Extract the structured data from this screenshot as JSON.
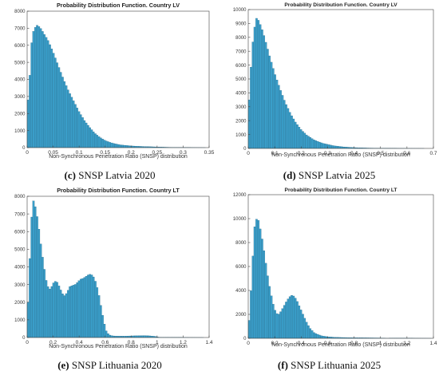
{
  "colors": {
    "bar_fill": "#3a9ec9",
    "bar_edge": "#1e5f7e",
    "axis": "#444444",
    "background": "#ffffff"
  },
  "chart_data": [
    {
      "id": "c",
      "type": "bar",
      "title": "Probability Distribution Function. Country LV",
      "xlabel": "Non-Synchronous Penetration Ratio (SNSP) distribution",
      "ylabel": "",
      "caption_letter": "(c)",
      "caption_text": "SNSP Latvia 2020",
      "xlim": [
        0,
        0.35
      ],
      "ylim": [
        0,
        8000
      ],
      "xticks": [
        0,
        0.05,
        0.1,
        0.15,
        0.2,
        0.25,
        0.3,
        0.35
      ],
      "xtick_labels": [
        "0",
        "0.05",
        "0.1",
        "0.15",
        "0.2",
        "0.25",
        "0.3",
        "0.35"
      ],
      "yticks": [
        0,
        1000,
        2000,
        3000,
        4000,
        5000,
        6000,
        7000,
        8000
      ],
      "ytick_labels": [
        "0",
        "1000",
        "2000",
        "3000",
        "4000",
        "5000",
        "6000",
        "7000",
        "8000"
      ],
      "grid": false,
      "bin_width": 0.0035,
      "points": [
        [
          0.003,
          2800
        ],
        [
          0.008,
          6000
        ],
        [
          0.012,
          6800
        ],
        [
          0.018,
          7200
        ],
        [
          0.025,
          7050
        ],
        [
          0.032,
          6700
        ],
        [
          0.04,
          6300
        ],
        [
          0.05,
          5600
        ],
        [
          0.06,
          4800
        ],
        [
          0.07,
          4000
        ],
        [
          0.08,
          3300
        ],
        [
          0.09,
          2700
        ],
        [
          0.1,
          2100
        ],
        [
          0.11,
          1600
        ],
        [
          0.12,
          1200
        ],
        [
          0.13,
          850
        ],
        [
          0.14,
          600
        ],
        [
          0.15,
          420
        ],
        [
          0.16,
          300
        ],
        [
          0.17,
          220
        ],
        [
          0.18,
          160
        ],
        [
          0.2,
          100
        ],
        [
          0.22,
          70
        ],
        [
          0.24,
          50
        ],
        [
          0.26,
          30
        ],
        [
          0.28,
          15
        ],
        [
          0.3,
          8
        ],
        [
          0.35,
          0
        ]
      ]
    },
    {
      "id": "d",
      "type": "bar",
      "title": "Probability Distribution Function. Country LV",
      "xlabel": "Non-Synchronous Penetration Ratio (SNSP) distribution",
      "ylabel": "",
      "caption_letter": "(d)",
      "caption_text": "SNSP Latvia 2025",
      "xlim": [
        0,
        0.7
      ],
      "ylim": [
        0,
        10000
      ],
      "xticks": [
        0,
        0.1,
        0.2,
        0.3,
        0.4,
        0.5,
        0.6,
        0.7
      ],
      "xtick_labels": [
        "0",
        "0.1",
        "0.2",
        "0.3",
        "0.4",
        "0.5",
        "0.6",
        "0.7"
      ],
      "yticks": [
        0,
        1000,
        2000,
        3000,
        4000,
        5000,
        6000,
        7000,
        8000,
        9000,
        10000
      ],
      "ytick_labels": [
        "0",
        "1000",
        "2000",
        "3000",
        "4000",
        "5000",
        "6000",
        "7000",
        "8000",
        "9000",
        "10000"
      ],
      "grid": false,
      "bin_width": 0.007,
      "points": [
        [
          0.005,
          3500
        ],
        [
          0.012,
          6500
        ],
        [
          0.02,
          8200
        ],
        [
          0.03,
          9400
        ],
        [
          0.04,
          9200
        ],
        [
          0.05,
          8700
        ],
        [
          0.06,
          8100
        ],
        [
          0.07,
          7400
        ],
        [
          0.08,
          6700
        ],
        [
          0.1,
          5400
        ],
        [
          0.12,
          4300
        ],
        [
          0.14,
          3300
        ],
        [
          0.16,
          2500
        ],
        [
          0.18,
          1850
        ],
        [
          0.2,
          1350
        ],
        [
          0.22,
          980
        ],
        [
          0.25,
          600
        ],
        [
          0.28,
          380
        ],
        [
          0.32,
          200
        ],
        [
          0.36,
          110
        ],
        [
          0.4,
          60
        ],
        [
          0.45,
          30
        ],
        [
          0.5,
          15
        ],
        [
          0.55,
          8
        ],
        [
          0.6,
          3
        ],
        [
          0.7,
          0
        ]
      ]
    },
    {
      "id": "e",
      "type": "bar",
      "title": "Probability Distribution Function. Country LT",
      "xlabel": "Non-Synchronous Penetration Ratio (SNSP) distribution",
      "ylabel": "",
      "caption_letter": "(e)",
      "caption_text": "SNSP Lithuania 2020",
      "xlim": [
        0,
        1.4
      ],
      "ylim": [
        0,
        8000
      ],
      "xticks": [
        0,
        0.2,
        0.4,
        0.6,
        0.8,
        1,
        1.2,
        1.4
      ],
      "xtick_labels": [
        "0",
        "0.2",
        "0.4",
        "0.6",
        "0.8",
        "1",
        "1.2",
        "1.4"
      ],
      "yticks": [
        0,
        1000,
        2000,
        3000,
        4000,
        5000,
        6000,
        7000,
        8000
      ],
      "ytick_labels": [
        "0",
        "1000",
        "2000",
        "3000",
        "4000",
        "5000",
        "6000",
        "7000",
        "8000"
      ],
      "grid": false,
      "bin_width": 0.014,
      "points": [
        [
          0.01,
          2000
        ],
        [
          0.03,
          6500
        ],
        [
          0.05,
          7800
        ],
        [
          0.07,
          7200
        ],
        [
          0.09,
          6200
        ],
        [
          0.11,
          5000
        ],
        [
          0.13,
          4000
        ],
        [
          0.15,
          3100
        ],
        [
          0.17,
          2700
        ],
        [
          0.19,
          2900
        ],
        [
          0.21,
          3200
        ],
        [
          0.23,
          3150
        ],
        [
          0.25,
          2850
        ],
        [
          0.27,
          2500
        ],
        [
          0.29,
          2350
        ],
        [
          0.31,
          2600
        ],
        [
          0.33,
          2900
        ],
        [
          0.35,
          2950
        ],
        [
          0.37,
          3000
        ],
        [
          0.39,
          3150
        ],
        [
          0.41,
          3300
        ],
        [
          0.43,
          3350
        ],
        [
          0.45,
          3450
        ],
        [
          0.47,
          3550
        ],
        [
          0.49,
          3600
        ],
        [
          0.51,
          3450
        ],
        [
          0.53,
          3100
        ],
        [
          0.55,
          2500
        ],
        [
          0.57,
          1700
        ],
        [
          0.59,
          900
        ],
        [
          0.61,
          350
        ],
        [
          0.63,
          150
        ],
        [
          0.66,
          90
        ],
        [
          0.7,
          80
        ],
        [
          0.75,
          80
        ],
        [
          0.8,
          90
        ],
        [
          0.85,
          100
        ],
        [
          0.9,
          110
        ],
        [
          0.95,
          90
        ],
        [
          0.99,
          60
        ],
        [
          1.02,
          10
        ],
        [
          1.4,
          0
        ]
      ]
    },
    {
      "id": "f",
      "type": "bar",
      "title": "Probability Distribution Function. Country LT",
      "xlabel": "Non-Synchronous Penetration Ratio (SNSP) distribution",
      "ylabel": "",
      "caption_letter": "(f)",
      "caption_text": "SNSP Lithuania 2025",
      "xlim": [
        0,
        1.4
      ],
      "ylim": [
        0,
        12000
      ],
      "xticks": [
        0,
        0.2,
        0.4,
        0.6,
        0.8,
        1,
        1.2,
        1.4
      ],
      "xtick_labels": [
        "0",
        "0.2",
        "0.4",
        "0.6",
        "0.8",
        "1",
        "1.2",
        "1.4"
      ],
      "yticks": [
        0,
        2000,
        4000,
        6000,
        8000,
        10000,
        12000
      ],
      "ytick_labels": [
        "0",
        "2000",
        "4000",
        "6000",
        "8000",
        "10000",
        "12000"
      ],
      "grid": false,
      "bin_width": 0.014,
      "points": [
        [
          0.01,
          1500
        ],
        [
          0.03,
          6000
        ],
        [
          0.05,
          9500
        ],
        [
          0.07,
          10200
        ],
        [
          0.09,
          9200
        ],
        [
          0.11,
          8000
        ],
        [
          0.13,
          6500
        ],
        [
          0.15,
          5000
        ],
        [
          0.17,
          3800
        ],
        [
          0.19,
          2800
        ],
        [
          0.21,
          2100
        ],
        [
          0.23,
          2000
        ],
        [
          0.25,
          2300
        ],
        [
          0.27,
          2700
        ],
        [
          0.29,
          3100
        ],
        [
          0.31,
          3450
        ],
        [
          0.33,
          3600
        ],
        [
          0.35,
          3500
        ],
        [
          0.37,
          3100
        ],
        [
          0.39,
          2600
        ],
        [
          0.41,
          2100
        ],
        [
          0.43,
          1600
        ],
        [
          0.45,
          1150
        ],
        [
          0.47,
          800
        ],
        [
          0.5,
          450
        ],
        [
          0.55,
          220
        ],
        [
          0.6,
          130
        ],
        [
          0.65,
          90
        ],
        [
          0.7,
          70
        ],
        [
          0.8,
          50
        ],
        [
          0.9,
          40
        ],
        [
          1.0,
          30
        ],
        [
          1.05,
          0
        ],
        [
          1.1,
          20
        ],
        [
          1.2,
          25
        ],
        [
          1.22,
          10
        ],
        [
          1.4,
          0
        ]
      ]
    }
  ]
}
